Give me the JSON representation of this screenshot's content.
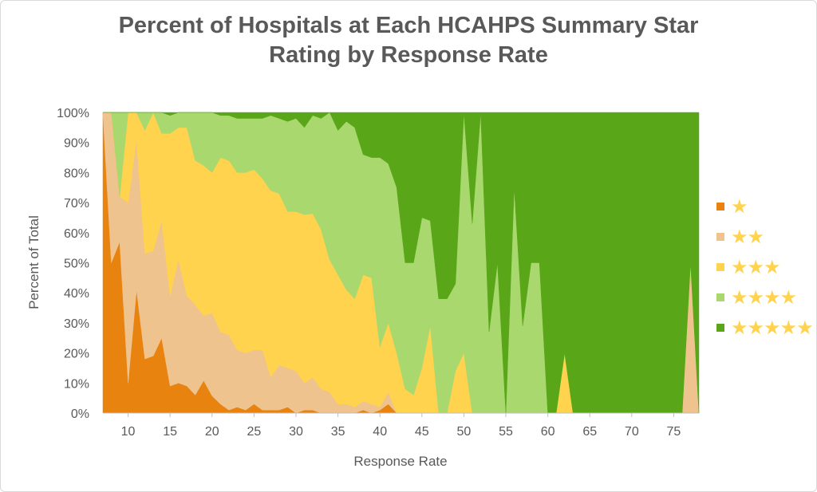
{
  "chart_data": {
    "type": "area",
    "stacked": "percent",
    "title_line1": "Percent of Hospitals at Each HCAHPS Summary Star",
    "title_line2": "Rating by Response Rate",
    "xlabel": "Response Rate",
    "ylabel": "Percent of Total",
    "xlim": [
      7,
      78
    ],
    "ylim": [
      0,
      100
    ],
    "x_ticks": [
      "10",
      "15",
      "20",
      "25",
      "30",
      "35",
      "40",
      "45",
      "50",
      "55",
      "60",
      "65",
      "70",
      "75"
    ],
    "x_tick_values": [
      10,
      15,
      20,
      25,
      30,
      35,
      40,
      45,
      50,
      55,
      60,
      65,
      70,
      75
    ],
    "y_ticks": [
      "0%",
      "10%",
      "20%",
      "30%",
      "40%",
      "50%",
      "60%",
      "70%",
      "80%",
      "90%",
      "100%"
    ],
    "y_tick_values": [
      0,
      10,
      20,
      30,
      40,
      50,
      60,
      70,
      80,
      90,
      100
    ],
    "x": [
      7,
      8,
      9,
      10,
      11,
      12,
      13,
      14,
      15,
      16,
      17,
      18,
      19,
      20,
      21,
      22,
      23,
      24,
      25,
      26,
      27,
      28,
      29,
      30,
      31,
      32,
      33,
      34,
      35,
      36,
      37,
      38,
      39,
      40,
      41,
      42,
      43,
      44,
      45,
      46,
      47,
      48,
      49,
      50,
      51,
      52,
      53,
      54,
      55,
      56,
      57,
      58,
      59,
      60,
      61,
      62,
      63,
      64,
      65,
      66,
      67,
      68,
      69,
      70,
      71,
      72,
      73,
      74,
      75,
      76,
      77,
      78
    ],
    "series": [
      {
        "name": "1 star",
        "legend": "★",
        "color": "#e8830f",
        "values": [
          100,
          50,
          57,
          10,
          41,
          18,
          19,
          25,
          9,
          10,
          9,
          6,
          11,
          6,
          3,
          1,
          2,
          1,
          3,
          1,
          1,
          1,
          2,
          0,
          1,
          1,
          0,
          0,
          0,
          0,
          0,
          1,
          0,
          1,
          3,
          0,
          0,
          0,
          0,
          0,
          0,
          0,
          0,
          0,
          0,
          0,
          0,
          0,
          0,
          0,
          0,
          0,
          0,
          0,
          0,
          0,
          0,
          0,
          0,
          0,
          0,
          0,
          0,
          0,
          0,
          0,
          0,
          0,
          0,
          0,
          0,
          0
        ]
      },
      {
        "name": "2 stars",
        "legend": "★★",
        "color": "#efc38d",
        "values": [
          0,
          50,
          15,
          60,
          50,
          35,
          35,
          39,
          30,
          41,
          30,
          30,
          22,
          29,
          24,
          25,
          19,
          19,
          18,
          20,
          11,
          15,
          13,
          14,
          9,
          11,
          8,
          7,
          3,
          3,
          2,
          3,
          3,
          1,
          4,
          0,
          0,
          0,
          0,
          0,
          0,
          0,
          0,
          0,
          0,
          0,
          0,
          0,
          0,
          0,
          0,
          0,
          0,
          0,
          0,
          0,
          0,
          0,
          0,
          0,
          0,
          0,
          0,
          0,
          0,
          0,
          0,
          0,
          0,
          0,
          50,
          0
        ]
      },
      {
        "name": "3 stars",
        "legend": "★★★",
        "color": "#ffd34d",
        "values": [
          0,
          0,
          0,
          30,
          9,
          41,
          46,
          29,
          54,
          44,
          56,
          48,
          51,
          49,
          58,
          58,
          59,
          60,
          60,
          57,
          62,
          57,
          52,
          53,
          56,
          55,
          53,
          44,
          43,
          38,
          36,
          42,
          42,
          20,
          23,
          20,
          8,
          6,
          15,
          29,
          0,
          0,
          14,
          20,
          0,
          0,
          0,
          0,
          0,
          0,
          0,
          0,
          0,
          0,
          0,
          20,
          0,
          0,
          0,
          0,
          0,
          0,
          0,
          0,
          0,
          0,
          0,
          0,
          0,
          0,
          0,
          0
        ]
      },
      {
        "name": "4 stars",
        "legend": "★★★★",
        "color": "#a9d86e",
        "values": [
          0,
          0,
          28,
          0,
          0,
          6,
          0,
          7,
          6,
          5,
          5,
          16,
          18,
          21,
          14,
          15,
          18,
          18,
          17,
          20,
          25,
          25,
          30,
          31,
          29,
          33,
          37,
          49,
          48,
          56,
          57,
          40,
          40,
          63,
          53,
          55,
          42,
          44,
          50,
          35,
          38,
          38,
          29,
          80,
          63,
          100,
          27,
          50,
          0,
          75,
          29,
          50,
          50,
          0,
          0,
          0,
          0,
          0,
          0,
          0,
          0,
          0,
          0,
          0,
          0,
          0,
          0,
          0,
          0,
          0,
          0,
          0
        ]
      },
      {
        "name": "5 stars",
        "legend": "★★★★★",
        "color": "#5aa619",
        "values": [
          0,
          0,
          0,
          0,
          0,
          0,
          0,
          0,
          1,
          0,
          0,
          0,
          0,
          0,
          1,
          1,
          2,
          2,
          2,
          2,
          1,
          2,
          3,
          2,
          5,
          1,
          2,
          0,
          6,
          3,
          5,
          14,
          15,
          15,
          17,
          25,
          50,
          50,
          35,
          36,
          62,
          62,
          57,
          0,
          37,
          0,
          73,
          50,
          100,
          25,
          71,
          50,
          50,
          100,
          100,
          80,
          100,
          100,
          100,
          100,
          100,
          100,
          100,
          100,
          100,
          100,
          100,
          100,
          100,
          100,
          50,
          100
        ]
      }
    ]
  }
}
